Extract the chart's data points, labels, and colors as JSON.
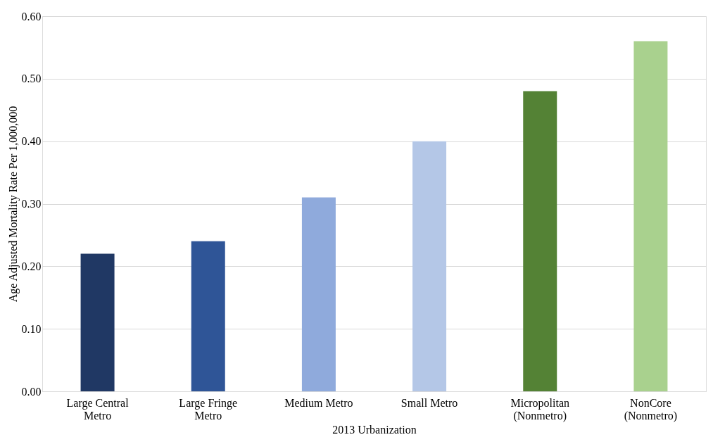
{
  "chart_data": {
    "type": "bar",
    "xlabel": "2013 Urbanization",
    "ylabel": "Age Adjusted Mortality Rate Per 1,000,000",
    "categories": [
      "Large Central Metro",
      "Large Fringe Metro",
      "Medium Metro",
      "Small Metro",
      "Micropolitan (Nonmetro)",
      "NonCore (Nonmetro)"
    ],
    "values": [
      0.22,
      0.24,
      0.31,
      0.4,
      0.48,
      0.56
    ],
    "colors": [
      "#203864",
      "#2f5597",
      "#8faadc",
      "#b4c7e7",
      "#548235",
      "#a9d18e"
    ],
    "ylim": [
      0,
      0.6
    ],
    "yticks": [
      {
        "value": 0,
        "label": "0.00"
      },
      {
        "value": 0.1,
        "label": "0.10"
      },
      {
        "value": 0.2,
        "label": "0.20"
      },
      {
        "value": 0.3,
        "label": "0.30"
      },
      {
        "value": 0.4,
        "label": "0.40"
      },
      {
        "value": 0.5,
        "label": "0.50"
      },
      {
        "value": 0.6,
        "label": "0.60"
      }
    ],
    "grid": "y",
    "legend": false
  }
}
